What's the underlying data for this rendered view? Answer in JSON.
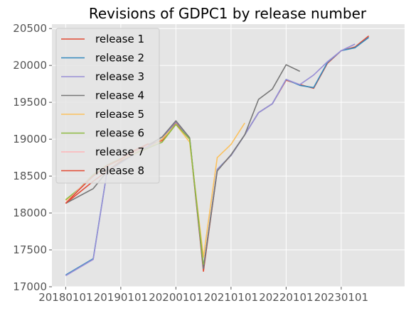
{
  "chart_data": {
    "type": "line",
    "title": "Revisions of GDPC1 by release number",
    "xlabel": "",
    "ylabel": "",
    "x_ticks": [
      "20180101",
      "20190101",
      "20200101",
      "20210101",
      "20220101",
      "20230101"
    ],
    "y_ticks": [
      "17000",
      "17500",
      "18000",
      "18500",
      "19000",
      "19500",
      "20000",
      "20500"
    ],
    "x_range": [
      2017.75,
      2024.15
    ],
    "ylim": [
      17000,
      20560
    ],
    "grid": true,
    "legend_position": "upper-left",
    "series": [
      {
        "name": "release 1",
        "color": "#E24A33",
        "points": [
          [
            2018.0,
            18130
          ],
          [
            2018.5,
            18430
          ],
          [
            2019.25,
            18840
          ],
          [
            2019.5,
            18930
          ],
          [
            2019.75,
            18980
          ],
          [
            2020.0,
            19230
          ],
          [
            2020.25,
            19000
          ],
          [
            2020.5,
            17210
          ],
          [
            2020.75,
            18580
          ],
          [
            2021.0,
            18780
          ],
          [
            2021.25,
            19060
          ],
          [
            2021.5,
            19360
          ],
          [
            2021.75,
            19480
          ],
          [
            2022.0,
            19800
          ],
          [
            2022.25,
            19740
          ],
          [
            2022.5,
            19690
          ],
          [
            2022.75,
            20030
          ],
          [
            2023.0,
            20200
          ],
          [
            2023.25,
            20250
          ],
          [
            2023.5,
            20400
          ]
        ]
      },
      {
        "name": "release 2",
        "color": "#348ABD",
        "points": [
          [
            2018.0,
            17160
          ],
          [
            2018.5,
            17380
          ],
          [
            2018.75,
            18560
          ],
          [
            2019.0,
            18680
          ],
          [
            2019.25,
            18800
          ],
          [
            2019.5,
            18900
          ],
          [
            2019.75,
            19000
          ],
          [
            2020.0,
            19240
          ],
          [
            2020.25,
            19010
          ],
          [
            2020.5,
            17250
          ],
          [
            2020.75,
            18590
          ],
          [
            2021.0,
            18780
          ],
          [
            2021.25,
            19060
          ],
          [
            2021.5,
            19360
          ],
          [
            2021.75,
            19480
          ],
          [
            2022.0,
            19810
          ],
          [
            2022.25,
            19730
          ],
          [
            2022.5,
            19700
          ],
          [
            2022.75,
            20040
          ],
          [
            2023.0,
            20200
          ],
          [
            2023.25,
            20240
          ],
          [
            2023.5,
            20380
          ]
        ]
      },
      {
        "name": "release 3",
        "color": "#988ED5",
        "points": [
          [
            2018.0,
            17150
          ],
          [
            2018.5,
            17370
          ],
          [
            2018.75,
            18560
          ],
          [
            2019.0,
            18680
          ],
          [
            2019.25,
            18800
          ],
          [
            2019.5,
            18900
          ],
          [
            2019.75,
            19000
          ],
          [
            2020.0,
            19240
          ],
          [
            2020.25,
            19010
          ],
          [
            2020.5,
            17250
          ],
          [
            2020.75,
            18590
          ],
          [
            2021.0,
            18780
          ],
          [
            2021.25,
            19060
          ],
          [
            2021.5,
            19360
          ],
          [
            2021.75,
            19480
          ],
          [
            2022.0,
            19810
          ],
          [
            2022.25,
            19740
          ],
          [
            2022.5,
            19870
          ],
          [
            2022.75,
            20050
          ],
          [
            2023.0,
            20200
          ],
          [
            2023.25,
            20290
          ]
        ]
      },
      {
        "name": "release 4",
        "color": "#777777",
        "points": [
          [
            2018.0,
            18130
          ],
          [
            2018.5,
            18330
          ],
          [
            2018.75,
            18560
          ],
          [
            2019.0,
            18690
          ],
          [
            2019.25,
            18810
          ],
          [
            2019.5,
            18920
          ],
          [
            2019.75,
            19030
          ],
          [
            2020.0,
            19250
          ],
          [
            2020.25,
            19020
          ],
          [
            2020.5,
            17250
          ],
          [
            2020.75,
            18570
          ],
          [
            2021.0,
            18790
          ],
          [
            2021.25,
            19060
          ],
          [
            2021.5,
            19540
          ],
          [
            2021.75,
            19680
          ],
          [
            2022.0,
            20010
          ],
          [
            2022.25,
            19920
          ]
        ]
      },
      {
        "name": "release 5",
        "color": "#FBC15E",
        "points": [
          [
            2018.0,
            18170
          ],
          [
            2018.25,
            18330
          ],
          [
            2018.5,
            18510
          ],
          [
            2018.75,
            18640
          ],
          [
            2019.0,
            18720
          ],
          [
            2019.25,
            18800
          ],
          [
            2019.5,
            18880
          ],
          [
            2019.75,
            19000
          ],
          [
            2020.0,
            19200
          ],
          [
            2020.25,
            18960
          ],
          [
            2020.5,
            17400
          ],
          [
            2020.75,
            18750
          ],
          [
            2021.0,
            18930
          ],
          [
            2021.25,
            19220
          ]
        ]
      },
      {
        "name": "release 6",
        "color": "#8EBA42",
        "points": [
          [
            2018.0,
            18180
          ],
          [
            2018.25,
            18330
          ],
          [
            2018.5,
            18520
          ],
          [
            2018.75,
            18650
          ],
          [
            2019.0,
            18740
          ],
          [
            2019.25,
            18810
          ],
          [
            2019.5,
            18880
          ],
          [
            2019.75,
            18960
          ],
          [
            2020.0,
            19200
          ],
          [
            2020.25,
            19000
          ],
          [
            2020.5,
            17300
          ]
        ]
      },
      {
        "name": "release 7",
        "color": "#FFB5B8",
        "points": [
          [
            2018.0,
            18140
          ],
          [
            2018.25,
            18330
          ],
          [
            2018.5,
            18500
          ],
          [
            2018.75,
            18640
          ],
          [
            2019.0,
            18730
          ],
          [
            2019.25,
            18820
          ],
          [
            2019.5,
            18920
          ]
        ]
      },
      {
        "name": "release 8",
        "color": "#E24A33",
        "points": [
          [
            2018.0,
            18130
          ],
          [
            2018.25,
            18320
          ],
          [
            2018.5,
            18500
          ],
          [
            2018.75,
            18640
          ],
          [
            2019.0,
            18730
          ],
          [
            2019.25,
            18850
          ],
          [
            2019.5,
            18940
          ]
        ]
      }
    ]
  }
}
